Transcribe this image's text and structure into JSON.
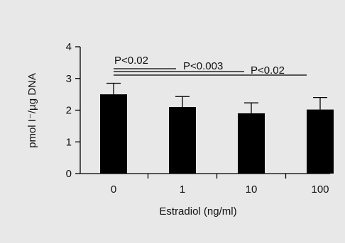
{
  "chart_data": {
    "type": "bar",
    "categories": [
      "0",
      "1",
      "10",
      "100"
    ],
    "values": [
      2.5,
      2.1,
      1.9,
      2.02
    ],
    "errors": [
      0.35,
      0.33,
      0.33,
      0.38
    ],
    "ylim": [
      0,
      4
    ],
    "yticks": [
      "0",
      "1",
      "2",
      "3",
      "4"
    ],
    "xlabel": "Estradiol (ng/ml)",
    "ylabel": "pmol I⁻/µg DNA",
    "grid": false,
    "bar_color": "#000000",
    "annotations": [
      {
        "label": "P<0.02",
        "from": "0",
        "to": "1"
      },
      {
        "label": "P<0.003",
        "from": "0",
        "to": "10"
      },
      {
        "label": "P<0.02",
        "from": "0",
        "to": "100"
      }
    ]
  }
}
